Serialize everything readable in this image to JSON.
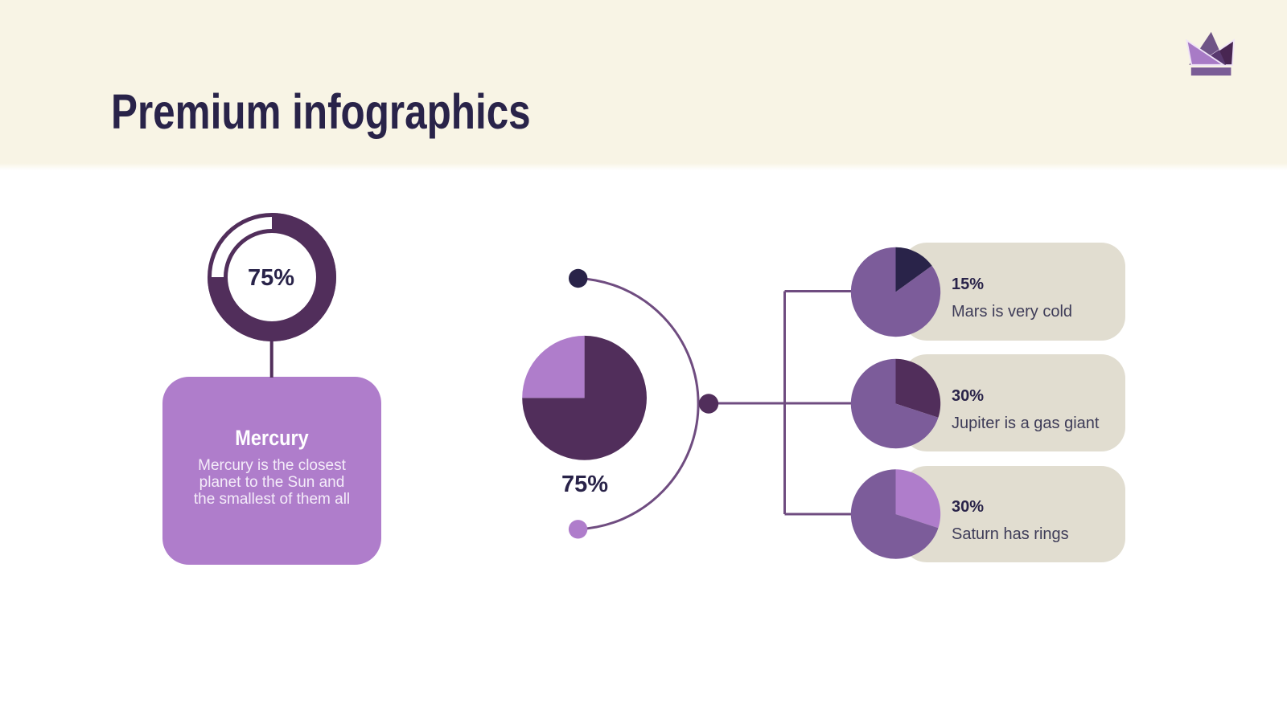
{
  "header": {
    "title": "Premium infographics"
  },
  "colors": {
    "cream": "#F8F4E5",
    "white": "#FFFFFF",
    "navy": "#292349",
    "plum": "#512E5B",
    "violet": "#7C5C9A",
    "lilac": "#AF7DCB",
    "beige": "#E1DDD0",
    "line": "#6F4C80",
    "text_dark": "#3E3C58",
    "card_text": "#F4ECF9",
    "crown_left": "#A87BC6",
    "crown_mid": "#6F5486",
    "crown_right": "#482652",
    "crown_base": "#7A5C96",
    "crown_overlap": "#58396F",
    "crown_outline": "#F0E4F7"
  },
  "left": {
    "donut": {
      "percent": 75,
      "label": "75%"
    },
    "card": {
      "title": "Mercury",
      "lines": [
        "Mercury is the closest",
        "planet to the Sun and",
        "the smallest of them all"
      ]
    }
  },
  "center": {
    "pie": {
      "label": "75%"
    }
  },
  "right": {
    "items": [
      {
        "percent_label": "15%",
        "text": "Mars is very cold"
      },
      {
        "percent_label": "30%",
        "text": "Jupiter is a gas giant"
      },
      {
        "percent_label": "30%",
        "text": "Saturn has rings"
      }
    ]
  },
  "chart_data": [
    {
      "mount": "left-donut",
      "type": "donut",
      "title": "Mercury",
      "value": 75,
      "remainder": 25,
      "data_label": "75%",
      "color": "plum",
      "legend_position": "none"
    },
    {
      "mount": "center-pie",
      "type": "pie",
      "data_label": "75%",
      "slices": [
        {
          "value": 75,
          "color": "plum"
        },
        {
          "value": 25,
          "color": "lilac"
        }
      ]
    },
    {
      "mount": "mini-0",
      "type": "pie",
      "data_label": "15%",
      "caption": "Mars is very cold",
      "slices": [
        {
          "value": 15,
          "color": "navy"
        },
        {
          "value": 85,
          "color": "violet"
        }
      ]
    },
    {
      "mount": "mini-1",
      "type": "pie",
      "data_label": "30%",
      "caption": "Jupiter is a gas giant",
      "slices": [
        {
          "value": 30,
          "color": "plum"
        },
        {
          "value": 70,
          "color": "violet"
        }
      ]
    },
    {
      "mount": "mini-2",
      "type": "pie",
      "data_label": "30%",
      "caption": "Saturn has rings",
      "slices": [
        {
          "value": 30,
          "color": "lilac"
        },
        {
          "value": 70,
          "color": "violet"
        }
      ]
    }
  ]
}
